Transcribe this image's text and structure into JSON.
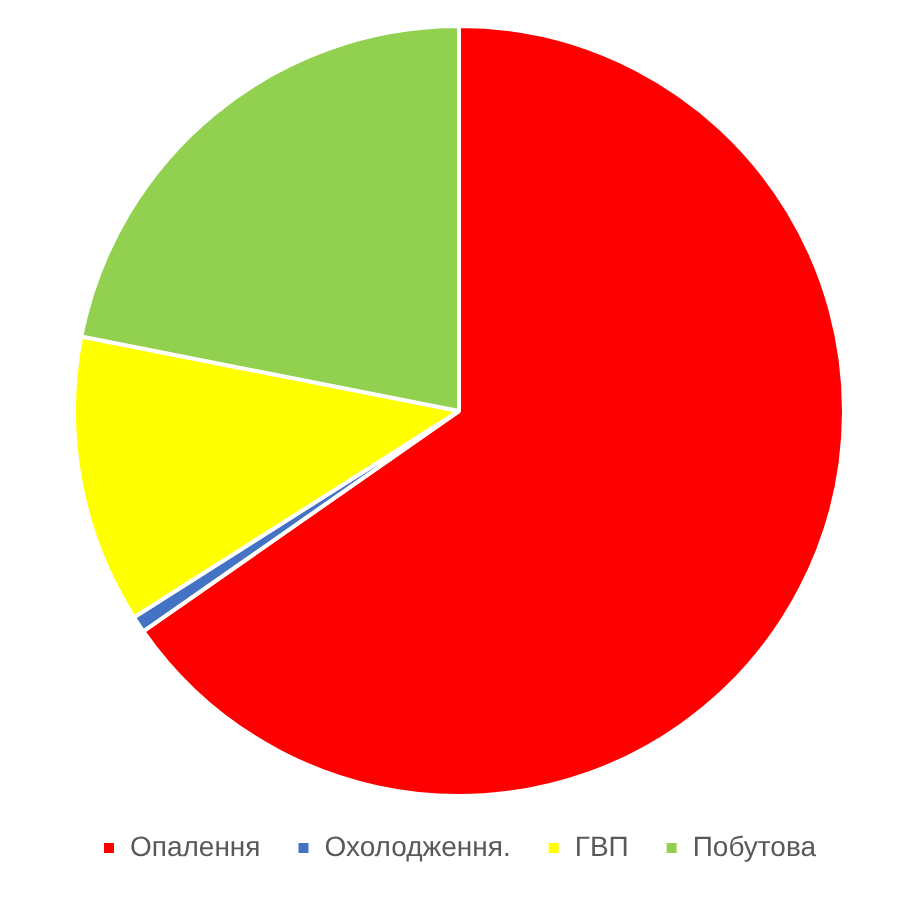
{
  "chart_data": {
    "type": "pie",
    "categories": [
      "Опалення",
      "Охолодження.",
      "ГВП",
      "Побутова"
    ],
    "values": [
      65.3,
      0.7,
      12.1,
      21.9
    ],
    "colors": [
      "#ff0000",
      "#4472c4",
      "#ffff00",
      "#92d050"
    ],
    "legend": "bottom"
  }
}
